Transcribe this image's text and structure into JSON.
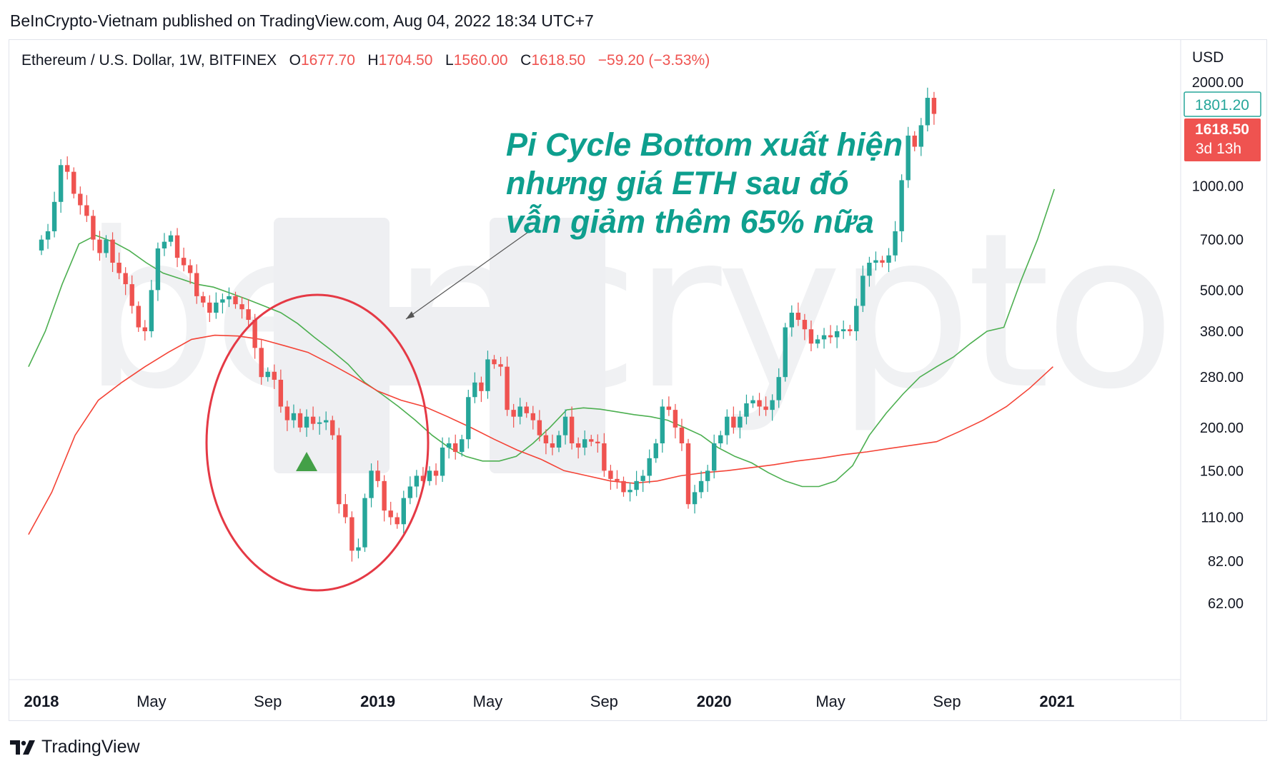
{
  "header": {
    "published": "BeInCrypto-Vietnam published on TradingView.com, Aug 04, 2022 18:34 UTC+7"
  },
  "legend": {
    "symbol": "Ethereum / U.S. Dollar, 1W, BITFINEX",
    "o_label": "O",
    "o_value": "1677.70",
    "h_label": "H",
    "h_value": "1704.50",
    "l_label": "L",
    "l_value": "1560.00",
    "c_label": "C",
    "c_value": "1618.50",
    "change": "−59.20 (−3.53%)"
  },
  "axis": {
    "currency": "USD"
  },
  "price_tags": {
    "ma_tag": "1801.20",
    "last_price": "1618.50",
    "countdown": "3d 13h"
  },
  "annotation": {
    "line1": "Pi Cycle Bottom xuất hiện",
    "line2": "nhưng giá ETH sau đó",
    "line3": "vẫn giảm thêm 65% nữa"
  },
  "watermark": {
    "text": "beincrypto"
  },
  "footer": {
    "brand": "TradingView"
  },
  "colors": {
    "up": "#26a69a",
    "down": "#ef5350",
    "ma_fast": "#4caf50",
    "ma_slow": "#f44336",
    "circle": "#e53945",
    "annotation": "#0e9f8e"
  },
  "chart_data": {
    "type": "candlestick",
    "symbol": "Ethereum / U.S. Dollar",
    "interval": "1W",
    "exchange": "BITFINEX",
    "y_scale": "log",
    "ylim": [
      62,
      2000
    ],
    "y_ticks": [
      {
        "value": 2000,
        "label": "2000.00"
      },
      {
        "value": 1000,
        "label": "1000.00"
      },
      {
        "value": 700,
        "label": "700.00"
      },
      {
        "value": 500,
        "label": "500.00"
      },
      {
        "value": 380,
        "label": "380.00"
      },
      {
        "value": 280,
        "label": "280.00"
      },
      {
        "value": 200,
        "label": "200.00"
      },
      {
        "value": 150,
        "label": "150.00"
      },
      {
        "value": 110,
        "label": "110.00"
      },
      {
        "value": 82,
        "label": "82.00"
      },
      {
        "value": 62,
        "label": "62.00"
      }
    ],
    "x_ticks": [
      {
        "label": "2018",
        "bold": true,
        "week": 0
      },
      {
        "label": "May",
        "bold": false,
        "week": 17
      },
      {
        "label": "Sep",
        "bold": false,
        "week": 35
      },
      {
        "label": "2019",
        "bold": true,
        "week": 52
      },
      {
        "label": "May",
        "bold": false,
        "week": 69
      },
      {
        "label": "Sep",
        "bold": false,
        "week": 87
      },
      {
        "label": "2020",
        "bold": true,
        "week": 104
      },
      {
        "label": "May",
        "bold": false,
        "week": 122
      },
      {
        "label": "Sep",
        "bold": false,
        "week": 140
      },
      {
        "label": "2021",
        "bold": true,
        "week": 157
      }
    ],
    "first_week": -2,
    "closes": [
      700,
      740,
      900,
      1150,
      1100,
      950,
      880,
      820,
      700,
      640,
      700,
      600,
      560,
      520,
      450,
      390,
      380,
      500,
      660,
      690,
      720,
      620,
      590,
      560,
      480,
      460,
      430,
      460,
      470,
      480,
      455,
      440,
      410,
      340,
      280,
      290,
      275,
      230,
      210,
      220,
      200,
      215,
      205,
      207,
      210,
      190,
      120,
      110,
      88,
      90,
      125,
      150,
      140,
      115,
      110,
      105,
      125,
      135,
      145,
      140,
      150,
      145,
      175,
      180,
      170,
      185,
      245,
      270,
      255,
      315,
      305,
      300,
      225,
      215,
      230,
      220,
      210,
      190,
      180,
      175,
      190,
      215,
      180,
      175,
      185,
      182,
      180,
      150,
      142,
      140,
      130,
      132,
      140,
      145,
      163,
      180,
      230,
      225,
      200,
      180,
      120,
      130,
      140,
      150,
      180,
      190,
      215,
      200,
      215,
      235,
      240,
      230,
      225,
      240,
      280,
      390,
      430,
      410,
      385,
      350,
      360,
      370,
      365,
      380,
      385,
      380,
      450,
      550,
      600,
      610,
      600,
      630,
      740,
      1040,
      1400,
      1300,
      1500,
      1801,
      1618
    ],
    "ma_fast": [
      300,
      380,
      520,
      680,
      720,
      690,
      650,
      600,
      560,
      540,
      520,
      510,
      490,
      470,
      450,
      430,
      400,
      365,
      335,
      305,
      270,
      250,
      230,
      210,
      190,
      175,
      165,
      160,
      160,
      165,
      180,
      200,
      225,
      228,
      226,
      222,
      218,
      215,
      210,
      200,
      190,
      175,
      165,
      158,
      148,
      140,
      135,
      135,
      140,
      155,
      190,
      220,
      250,
      280,
      300,
      320,
      350,
      380,
      390,
      530,
      700,
      980
    ],
    "ma_slow": [
      98,
      130,
      190,
      240,
      270,
      300,
      330,
      360,
      370,
      368,
      360,
      345,
      330,
      305,
      280,
      255,
      240,
      230,
      215,
      200,
      185,
      172,
      162,
      150,
      145,
      140,
      138,
      140,
      145,
      148,
      150,
      153,
      156,
      160,
      163,
      167,
      170,
      174,
      178,
      182,
      195,
      210,
      230,
      260,
      300
    ],
    "ma_fast_step_weeks": 2.6,
    "ma_slow_step_weeks": 3.6,
    "series": [
      {
        "name": "ETH/USD weekly candles"
      },
      {
        "name": "Pi Cycle fast MA"
      },
      {
        "name": "Pi Cycle slow MA"
      }
    ],
    "annotation_marker": {
      "type": "triangle-up",
      "week": 41,
      "price": 160
    },
    "grid": false,
    "legend_position": "top-left"
  }
}
